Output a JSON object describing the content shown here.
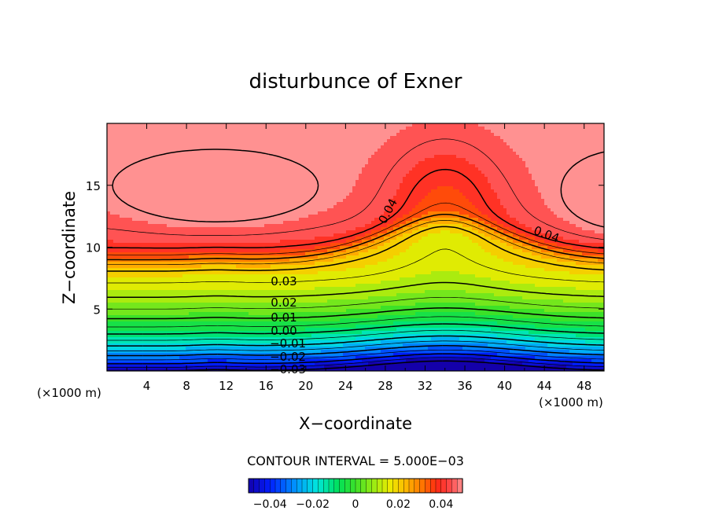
{
  "chart_data": {
    "type": "contour",
    "title": "disturbunce of Exner",
    "xlabel": "X−coordinate",
    "ylabel": "Z−coordinate",
    "x_unit": "(×1000 m)",
    "x_unit_right": "(×1000 m)",
    "xlim": [
      0,
      50
    ],
    "ylim": [
      0,
      20
    ],
    "x_ticks": [
      4,
      8,
      12,
      16,
      20,
      24,
      28,
      32,
      36,
      40,
      44,
      48
    ],
    "y_ticks": [
      5,
      10,
      15
    ],
    "contour_interval_text": "CONTOUR INTERVAL = 5.000E−03",
    "contour_interval": 0.005,
    "value_range": [
      -0.05,
      0.05
    ],
    "contour_labels": [
      {
        "text": "0.04",
        "x": 28.3,
        "z": 12.9,
        "angle": -62
      },
      {
        "text": "0.04",
        "x": 44.2,
        "z": 11.0,
        "angle": 20
      },
      {
        "text": "0.03",
        "x": 17.8,
        "z": 7.2,
        "angle": 0
      },
      {
        "text": "0.02",
        "x": 17.8,
        "z": 5.5,
        "angle": 0
      },
      {
        "text": "0.01",
        "x": 17.8,
        "z": 4.3,
        "angle": 0
      },
      {
        "text": "0.00",
        "x": 17.8,
        "z": 3.2,
        "angle": 0
      },
      {
        "text": "−0.01",
        "x": 18.2,
        "z": 2.2,
        "angle": 0
      },
      {
        "text": "−0.02",
        "x": 18.2,
        "z": 1.1,
        "angle": 0
      },
      {
        "text": "−0.03",
        "x": 18.2,
        "z": 0.1,
        "angle": 0
      }
    ],
    "colorbar": {
      "ticks": [
        {
          "value": -0.04,
          "label": "−0.04"
        },
        {
          "value": -0.02,
          "label": "−0.02"
        },
        {
          "value": 0,
          "label": "0"
        },
        {
          "value": 0.02,
          "label": "0.02"
        },
        {
          "value": 0.04,
          "label": "0.04"
        }
      ],
      "range": [
        -0.05,
        0.05
      ],
      "colormap": "rainbow"
    },
    "colors": {
      "low": "#1a00b4",
      "mid": "#24e028",
      "high": "#ff1e1e",
      "peak": "#ff8c8c"
    }
  }
}
